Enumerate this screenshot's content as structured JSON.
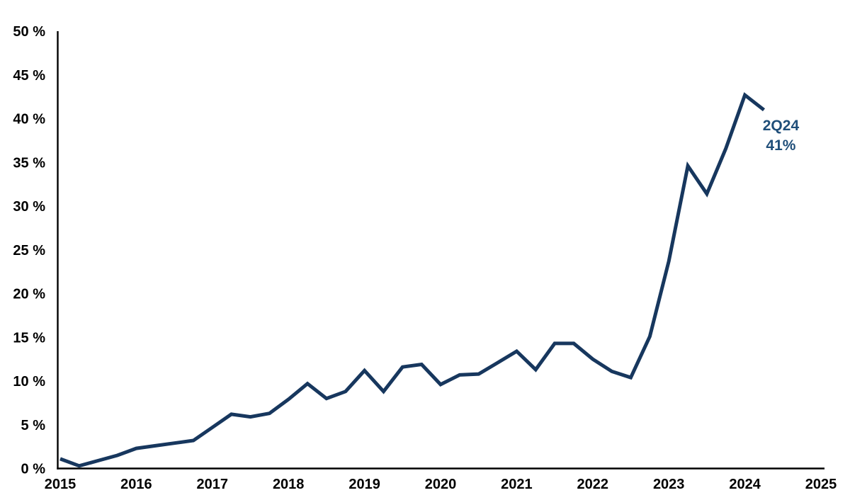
{
  "chart_data": {
    "type": "line",
    "title": "",
    "xlabel": "",
    "ylabel": "",
    "grid": false,
    "legend": "none",
    "xlim": [
      2015,
      2025
    ],
    "ylim": [
      0,
      50
    ],
    "x_ticks": [
      2015,
      2016,
      2017,
      2018,
      2019,
      2020,
      2021,
      2022,
      2023,
      2024,
      2025
    ],
    "y_ticks": [
      0,
      5,
      10,
      15,
      20,
      25,
      30,
      35,
      40,
      45,
      50
    ],
    "y_tick_label_suffix": " %",
    "axis_color": "#000000",
    "tick_label_color": "#000000",
    "series": [
      {
        "color": "#17375E",
        "points": [
          {
            "period": "1Q15",
            "value": 1.1
          },
          {
            "period": "2Q15",
            "value": 0.3
          },
          {
            "period": "3Q15",
            "value": 0.9
          },
          {
            "period": "4Q15",
            "value": 1.5
          },
          {
            "period": "1Q16",
            "value": 2.3
          },
          {
            "period": "2Q16",
            "value": 2.6
          },
          {
            "period": "3Q16",
            "value": 2.9
          },
          {
            "period": "4Q16",
            "value": 3.2
          },
          {
            "period": "1Q17",
            "value": 4.7
          },
          {
            "period": "2Q17",
            "value": 6.2
          },
          {
            "period": "3Q17",
            "value": 5.9
          },
          {
            "period": "4Q17",
            "value": 6.3
          },
          {
            "period": "1Q18",
            "value": 7.9
          },
          {
            "period": "2Q18",
            "value": 9.7
          },
          {
            "period": "3Q18",
            "value": 8.0
          },
          {
            "period": "4Q18",
            "value": 8.8
          },
          {
            "period": "1Q19",
            "value": 11.2
          },
          {
            "period": "2Q19",
            "value": 8.8
          },
          {
            "period": "3Q19",
            "value": 11.6
          },
          {
            "period": "4Q19",
            "value": 11.9
          },
          {
            "period": "1Q20",
            "value": 9.6
          },
          {
            "period": "2Q20",
            "value": 10.7
          },
          {
            "period": "3Q20",
            "value": 10.8
          },
          {
            "period": "4Q20",
            "value": 12.1
          },
          {
            "period": "1Q21",
            "value": 13.4
          },
          {
            "period": "2Q21",
            "value": 11.3
          },
          {
            "period": "3Q21",
            "value": 14.3
          },
          {
            "period": "4Q21",
            "value": 14.3
          },
          {
            "period": "1Q22",
            "value": 12.5
          },
          {
            "period": "2Q22",
            "value": 11.1
          },
          {
            "period": "3Q22",
            "value": 10.4
          },
          {
            "period": "4Q22",
            "value": 15.1
          },
          {
            "period": "1Q23",
            "value": 23.7
          },
          {
            "period": "2Q23",
            "value": 34.6
          },
          {
            "period": "3Q23",
            "value": 31.4
          },
          {
            "period": "4Q23",
            "value": 36.6
          },
          {
            "period": "1Q24",
            "value": 42.7
          },
          {
            "period": "2Q24",
            "value": 41.0
          }
        ]
      }
    ],
    "annotation": {
      "label": "2Q24",
      "value_label": "41%",
      "attached_period": "2Q24",
      "attached_value": 41,
      "color": "#1F4E79"
    }
  }
}
